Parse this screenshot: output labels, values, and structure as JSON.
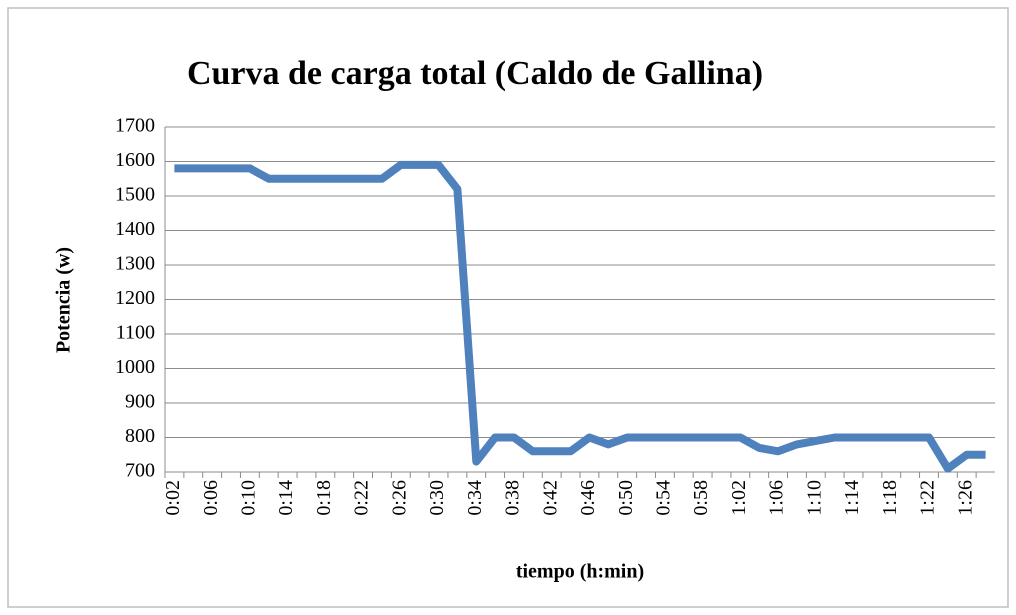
{
  "chart_data": {
    "type": "line",
    "title": "Curva de carga total (Caldo de Gallina)",
    "x_label": "tiempo (h:min)",
    "y_label": "Potencia (w)",
    "categories": [
      "0:02",
      null,
      "0:06",
      null,
      "0:10",
      null,
      "0:14",
      null,
      "0:18",
      null,
      "0:22",
      null,
      "0:26",
      null,
      "0:30",
      null,
      "0:34",
      null,
      "0:38",
      null,
      "0:42",
      null,
      "0:46",
      null,
      "0:50",
      null,
      "0:54",
      null,
      "0:58",
      null,
      "1:02",
      null,
      "1:06",
      null,
      "1:10",
      null,
      "1:14",
      null,
      "1:18",
      null,
      "1:22",
      null,
      "1:26",
      null
    ],
    "series": [
      {
        "name": "Potencia",
        "color": "#4f81bd",
        "values": [
          1580,
          1580,
          1580,
          1580,
          1580,
          1550,
          1550,
          1550,
          1550,
          1550,
          1550,
          1550,
          1590,
          1590,
          1590,
          1520,
          730,
          800,
          800,
          760,
          760,
          760,
          800,
          780,
          800,
          800,
          800,
          800,
          800,
          800,
          800,
          770,
          760,
          780,
          790,
          800,
          800,
          800,
          800,
          800,
          800,
          710,
          750,
          750
        ]
      }
    ],
    "ylim": [
      700,
      1700
    ],
    "yticks": [
      700,
      800,
      900,
      1000,
      1100,
      1200,
      1300,
      1400,
      1500,
      1600,
      1700
    ],
    "grid": true
  }
}
